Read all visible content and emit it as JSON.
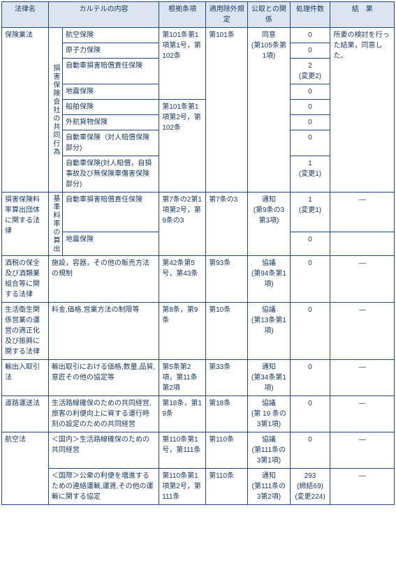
{
  "headers": {
    "law": "法律名",
    "content": "カルテルの内容",
    "basis": "根拠条項",
    "exemption": "適用除外規定",
    "ftc": "公取との関係",
    "count": "処理件数",
    "result": "結　果"
  },
  "row1": {
    "law": "保険業法",
    "group": "損害保険会社の共同行為",
    "c1": "航空保険",
    "basis1": "第101条第1項第1号，第102条",
    "ex1": "第101条",
    "ftc1": "同意",
    "ftc1b": "(第105条第1項)",
    "cnt1": "0",
    "res1": "所要の検討を行った結果，同意した。",
    "c2": "原子力保険",
    "cnt2": "0",
    "c3": "自動車損害賠償責任保険",
    "cnt3": "2",
    "cnt3b": "(変更2)",
    "c4": "地震保険",
    "cnt4": "0",
    "c5": "船舶保険",
    "basis5": "第101条第1項第2号，第102条",
    "cnt5": "0",
    "c6": "外航貨物保険",
    "cnt6": "0",
    "c7": "自動車保険（対人賠償保険部分)",
    "cnt7": "0",
    "c8": "自動車保険(対人賠償，自損事故及び無保険車傷害保険部分)",
    "cnt8": "1",
    "cnt8b": "(変更1)"
  },
  "row2": {
    "law": "損害保険料率算出団体に関する法律",
    "group": "基準料率の算出",
    "c1": "自動車損害賠償責任保険",
    "basis": "第7条の2第1項第2号，第9条の3",
    "ex": "第7条の3",
    "ftc": "通知",
    "ftcb": "(第9条の3第3項)",
    "cnt1": "1",
    "cnt1b": "(変更1)",
    "res1": "―",
    "c2": "地震保険",
    "cnt2": "0"
  },
  "row3": {
    "law": "酒税の保全及び酒類業組合等に関する法律",
    "content": "施設，容器，その他の販売方法の規制",
    "basis": "第42条第5号，第43条",
    "ex": "第93条",
    "ftc": "協議",
    "ftcb": "(第94条第1項)",
    "cnt": "0",
    "res": "―"
  },
  "row4": {
    "law": "生活衛生関係営業の運営の適正化及び振興に関する法律",
    "content": "料金,価格,営業方法の制限等",
    "basis": "第8条，第9条",
    "ex": "第10条",
    "ftc": "協議",
    "ftcb": "(第13条第1項)",
    "cnt": "0",
    "res": "―"
  },
  "row5": {
    "law": "輸出入取引法",
    "content": "輸出取引における価格,数量,品質,意匠その他の協定等",
    "basis": "第5条第2項，第11条第2項",
    "ex": "第33条",
    "ftc": "通知",
    "ftcb": "(第34条第1項)",
    "cnt": "0",
    "res": "―"
  },
  "row6": {
    "law": "道路運送法",
    "content": "生活路線確保のための共同経営,旅客の利便向上に資する運行時刻の設定のための共同経営",
    "basis": "第18条，第19条",
    "ex": "第18条",
    "ftc": "協議",
    "ftcb": "(第 19 条の3第1項)",
    "cnt": "0",
    "res": "―"
  },
  "row7": {
    "law": "航空法",
    "c1": "＜国内＞生活路線確保のための共同経営",
    "basis1": "第110条第1号，第111条",
    "ex1": "第110条",
    "ftc1": "協議",
    "ftc1b": "(第111条の3第1項)",
    "cnt1": "0",
    "res1": "―",
    "c2": "＜国際＞公衆の利便を増進するための連絡運輸,運賃,その他の運輸に関する協定",
    "basis2": "第110条第1項第2号，第111条",
    "ex2": "第110条",
    "ftc2": "通知",
    "ftc2b": "(第111条の3第2項)",
    "cnt2": "293",
    "cnt2b": "(締結69)",
    "cnt2c": "(変更224)",
    "res2": "―"
  }
}
